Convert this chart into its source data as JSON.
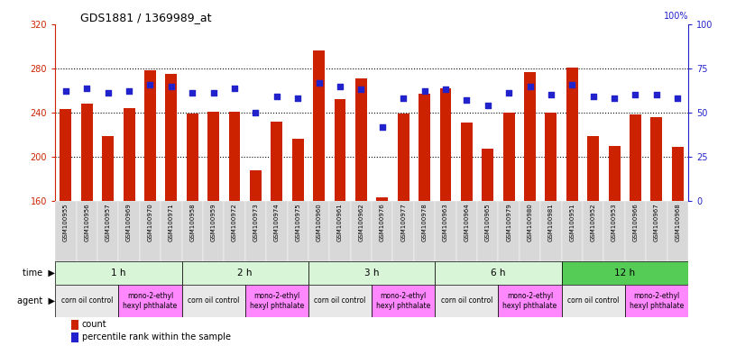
{
  "title": "GDS1881 / 1369989_at",
  "samples": [
    "GSM100955",
    "GSM100956",
    "GSM100957",
    "GSM100969",
    "GSM100970",
    "GSM100971",
    "GSM100958",
    "GSM100959",
    "GSM100972",
    "GSM100973",
    "GSM100974",
    "GSM100975",
    "GSM100960",
    "GSM100961",
    "GSM100962",
    "GSM100976",
    "GSM100977",
    "GSM100978",
    "GSM100963",
    "GSM100964",
    "GSM100965",
    "GSM100979",
    "GSM100980",
    "GSM100981",
    "GSM100951",
    "GSM100952",
    "GSM100953",
    "GSM100966",
    "GSM100967",
    "GSM100968"
  ],
  "counts": [
    243,
    248,
    219,
    244,
    278,
    275,
    239,
    241,
    241,
    188,
    232,
    216,
    296,
    252,
    271,
    163,
    239,
    257,
    262,
    231,
    207,
    240,
    277,
    240,
    281,
    219,
    210,
    238,
    236,
    209
  ],
  "percentiles": [
    62,
    64,
    61,
    62,
    66,
    65,
    61,
    61,
    64,
    50,
    59,
    58,
    67,
    65,
    63,
    42,
    58,
    62,
    63,
    57,
    54,
    61,
    65,
    60,
    66,
    59,
    58,
    60,
    60,
    58
  ],
  "y_min": 160,
  "y_max": 320,
  "y_ticks": [
    160,
    200,
    240,
    280,
    320
  ],
  "y_right_ticks": [
    0,
    25,
    50,
    75,
    100
  ],
  "bar_color": "#cc2200",
  "dot_color": "#2222cc",
  "bg_color": "#ffffff",
  "time_groups": [
    {
      "label": "1 h",
      "start": 0,
      "end": 6
    },
    {
      "label": "2 h",
      "start": 6,
      "end": 12
    },
    {
      "label": "3 h",
      "start": 12,
      "end": 18
    },
    {
      "label": "6 h",
      "start": 18,
      "end": 24
    },
    {
      "label": "12 h",
      "start": 24,
      "end": 30
    }
  ],
  "time_colors": [
    "#d8f5d8",
    "#d8f5d8",
    "#d8f5d8",
    "#d8f5d8",
    "#66cc66"
  ],
  "agent_groups": [
    {
      "label": "corn oil control",
      "start": 0,
      "end": 3,
      "color": "#e8e8e8"
    },
    {
      "label": "mono-2-ethyl\nhexyl phthalate",
      "start": 3,
      "end": 6,
      "color": "#ff88ff"
    },
    {
      "label": "corn oil control",
      "start": 6,
      "end": 9,
      "color": "#e8e8e8"
    },
    {
      "label": "mono-2-ethyl\nhexyl phthalate",
      "start": 9,
      "end": 12,
      "color": "#ff88ff"
    },
    {
      "label": "corn oil control",
      "start": 12,
      "end": 15,
      "color": "#e8e8e8"
    },
    {
      "label": "mono-2-ethyl\nhexyl phthalate",
      "start": 15,
      "end": 18,
      "color": "#ff88ff"
    },
    {
      "label": "corn oil control",
      "start": 18,
      "end": 21,
      "color": "#e8e8e8"
    },
    {
      "label": "mono-2-ethyl\nhexyl phthalate",
      "start": 21,
      "end": 24,
      "color": "#ff88ff"
    },
    {
      "label": "corn oil control",
      "start": 24,
      "end": 27,
      "color": "#e8e8e8"
    },
    {
      "label": "mono-2-ethyl\nhexyl phthalate",
      "start": 27,
      "end": 30,
      "color": "#ff88ff"
    }
  ],
  "legend_count_color": "#cc2200",
  "legend_dot_color": "#2222cc"
}
